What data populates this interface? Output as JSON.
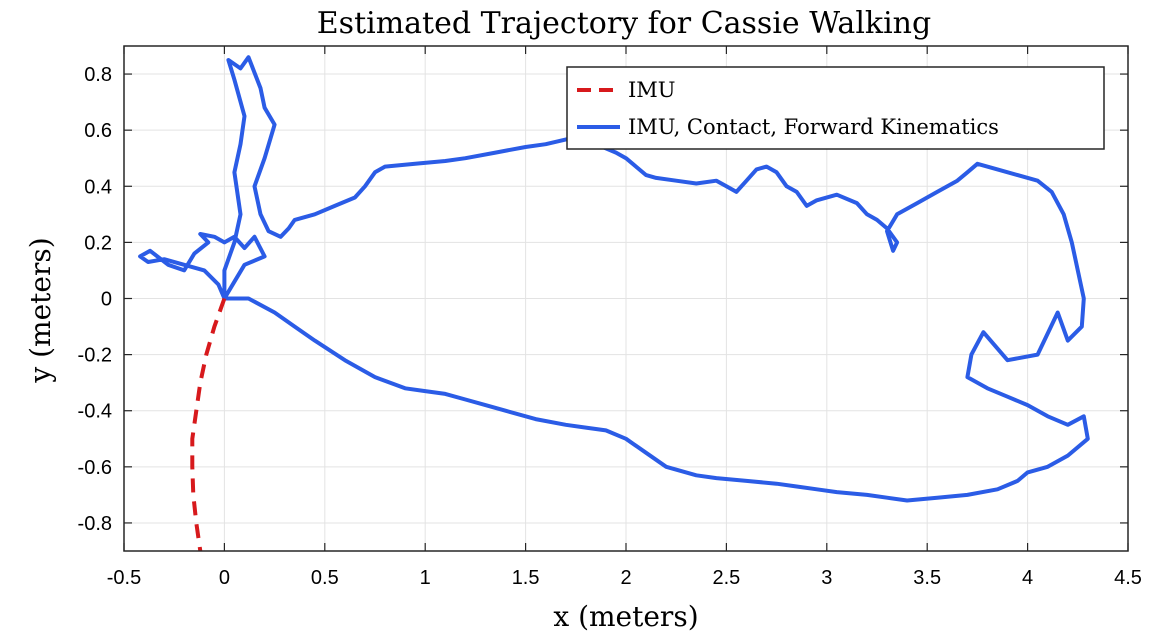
{
  "chart_data": {
    "type": "line",
    "title": "Estimated Trajectory for Cassie Walking",
    "xlabel": "x (meters)",
    "ylabel": "y (meters)",
    "xlim": [
      -0.5,
      4.5
    ],
    "ylim": [
      -0.9,
      0.9
    ],
    "grid": true,
    "legend_position": "top-right",
    "x_ticks": [
      -0.5,
      0,
      0.5,
      1,
      1.5,
      2,
      2.5,
      3,
      3.5,
      4,
      4.5
    ],
    "x_tick_labels": [
      "-0.5",
      "0",
      "0.5",
      "1",
      "1.5",
      "2",
      "2.5",
      "3",
      "3.5",
      "4",
      "4.5"
    ],
    "y_ticks": [
      0.8,
      0.6,
      0.4,
      0.2,
      0,
      -0.2,
      -0.4,
      -0.6,
      -0.8
    ],
    "y_tick_labels": [
      "0.8",
      "0.6",
      "0.4",
      "0.2",
      "0",
      "-0.2",
      "-0.4",
      "-0.6",
      "-0.8"
    ],
    "series": [
      {
        "name": "IMU",
        "color": "#d7191c",
        "style": "dashed",
        "points": [
          [
            0.0,
            0.0
          ],
          [
            -0.05,
            -0.1
          ],
          [
            -0.09,
            -0.2
          ],
          [
            -0.12,
            -0.3
          ],
          [
            -0.14,
            -0.4
          ],
          [
            -0.16,
            -0.5
          ],
          [
            -0.16,
            -0.6
          ],
          [
            -0.155,
            -0.7
          ],
          [
            -0.14,
            -0.8
          ],
          [
            -0.12,
            -0.9
          ]
        ]
      },
      {
        "name": "IMU, Contact, Forward Kinematics",
        "color": "#2b5ce6",
        "style": "solid",
        "points": [
          [
            0.0,
            0.0
          ],
          [
            -0.03,
            0.05
          ],
          [
            -0.1,
            0.1
          ],
          [
            -0.2,
            0.12
          ],
          [
            -0.3,
            0.14
          ],
          [
            -0.38,
            0.13
          ],
          [
            -0.42,
            0.15
          ],
          [
            -0.37,
            0.17
          ],
          [
            -0.28,
            0.12
          ],
          [
            -0.2,
            0.1
          ],
          [
            -0.15,
            0.16
          ],
          [
            -0.08,
            0.2
          ],
          [
            -0.12,
            0.23
          ],
          [
            -0.05,
            0.22
          ],
          [
            0.0,
            0.2
          ],
          [
            0.05,
            0.22
          ],
          [
            0.1,
            0.18
          ],
          [
            0.15,
            0.22
          ],
          [
            0.2,
            0.15
          ],
          [
            0.1,
            0.12
          ],
          [
            0.05,
            0.06
          ],
          [
            0.0,
            0.0
          ],
          [
            0.0,
            0.1
          ],
          [
            0.05,
            0.2
          ],
          [
            0.08,
            0.3
          ],
          [
            0.05,
            0.45
          ],
          [
            0.08,
            0.55
          ],
          [
            0.1,
            0.65
          ],
          [
            0.05,
            0.78
          ],
          [
            0.02,
            0.85
          ],
          [
            0.08,
            0.82
          ],
          [
            0.12,
            0.86
          ],
          [
            0.18,
            0.75
          ],
          [
            0.2,
            0.68
          ],
          [
            0.25,
            0.62
          ],
          [
            0.2,
            0.5
          ],
          [
            0.15,
            0.4
          ],
          [
            0.18,
            0.3
          ],
          [
            0.22,
            0.24
          ],
          [
            0.28,
            0.22
          ],
          [
            0.32,
            0.25
          ],
          [
            0.35,
            0.28
          ],
          [
            0.45,
            0.3
          ],
          [
            0.55,
            0.33
          ],
          [
            0.65,
            0.36
          ],
          [
            0.7,
            0.4
          ],
          [
            0.75,
            0.45
          ],
          [
            0.8,
            0.47
          ],
          [
            0.95,
            0.48
          ],
          [
            1.1,
            0.49
          ],
          [
            1.2,
            0.5
          ],
          [
            1.35,
            0.52
          ],
          [
            1.5,
            0.54
          ],
          [
            1.6,
            0.55
          ],
          [
            1.72,
            0.57
          ],
          [
            1.85,
            0.55
          ],
          [
            1.95,
            0.52
          ],
          [
            2.0,
            0.5
          ],
          [
            2.05,
            0.47
          ],
          [
            2.1,
            0.44
          ],
          [
            2.15,
            0.43
          ],
          [
            2.25,
            0.42
          ],
          [
            2.35,
            0.41
          ],
          [
            2.45,
            0.42
          ],
          [
            2.5,
            0.4
          ],
          [
            2.55,
            0.38
          ],
          [
            2.6,
            0.42
          ],
          [
            2.65,
            0.46
          ],
          [
            2.7,
            0.47
          ],
          [
            2.75,
            0.45
          ],
          [
            2.8,
            0.4
          ],
          [
            2.85,
            0.38
          ],
          [
            2.9,
            0.33
          ],
          [
            2.95,
            0.35
          ],
          [
            3.05,
            0.37
          ],
          [
            3.15,
            0.34
          ],
          [
            3.2,
            0.3
          ],
          [
            3.25,
            0.28
          ],
          [
            3.3,
            0.25
          ],
          [
            3.35,
            0.2
          ],
          [
            3.33,
            0.17
          ],
          [
            3.3,
            0.24
          ],
          [
            3.35,
            0.3
          ],
          [
            3.45,
            0.34
          ],
          [
            3.55,
            0.38
          ],
          [
            3.65,
            0.42
          ],
          [
            3.7,
            0.45
          ],
          [
            3.75,
            0.48
          ],
          [
            3.85,
            0.46
          ],
          [
            3.95,
            0.44
          ],
          [
            4.05,
            0.42
          ],
          [
            4.12,
            0.38
          ],
          [
            4.18,
            0.3
          ],
          [
            4.22,
            0.2
          ],
          [
            4.25,
            0.1
          ],
          [
            4.28,
            0.0
          ],
          [
            4.27,
            -0.1
          ],
          [
            4.2,
            -0.15
          ],
          [
            4.15,
            -0.05
          ],
          [
            4.05,
            -0.2
          ],
          [
            3.9,
            -0.22
          ],
          [
            3.78,
            -0.12
          ],
          [
            3.72,
            -0.2
          ],
          [
            3.7,
            -0.28
          ],
          [
            3.8,
            -0.32
          ],
          [
            3.9,
            -0.35
          ],
          [
            4.0,
            -0.38
          ],
          [
            4.1,
            -0.42
          ],
          [
            4.2,
            -0.45
          ],
          [
            4.28,
            -0.42
          ],
          [
            4.3,
            -0.5
          ],
          [
            4.2,
            -0.56
          ],
          [
            4.1,
            -0.6
          ],
          [
            4.0,
            -0.62
          ],
          [
            3.95,
            -0.65
          ],
          [
            3.85,
            -0.68
          ],
          [
            3.7,
            -0.7
          ],
          [
            3.55,
            -0.71
          ],
          [
            3.4,
            -0.72
          ],
          [
            3.3,
            -0.71
          ],
          [
            3.2,
            -0.7
          ],
          [
            3.05,
            -0.69
          ],
          [
            2.95,
            -0.68
          ],
          [
            2.85,
            -0.67
          ],
          [
            2.75,
            -0.66
          ],
          [
            2.6,
            -0.65
          ],
          [
            2.45,
            -0.64
          ],
          [
            2.35,
            -0.63
          ],
          [
            2.2,
            -0.6
          ],
          [
            2.1,
            -0.55
          ],
          [
            2.0,
            -0.5
          ],
          [
            1.9,
            -0.47
          ],
          [
            1.8,
            -0.46
          ],
          [
            1.7,
            -0.45
          ],
          [
            1.55,
            -0.43
          ],
          [
            1.4,
            -0.4
          ],
          [
            1.3,
            -0.38
          ],
          [
            1.2,
            -0.36
          ],
          [
            1.1,
            -0.34
          ],
          [
            1.0,
            -0.33
          ],
          [
            0.9,
            -0.32
          ],
          [
            0.75,
            -0.28
          ],
          [
            0.6,
            -0.22
          ],
          [
            0.45,
            -0.15
          ],
          [
            0.35,
            -0.1
          ],
          [
            0.25,
            -0.05
          ],
          [
            0.12,
            0.0
          ],
          [
            0.0,
            0.0
          ]
        ]
      }
    ]
  }
}
